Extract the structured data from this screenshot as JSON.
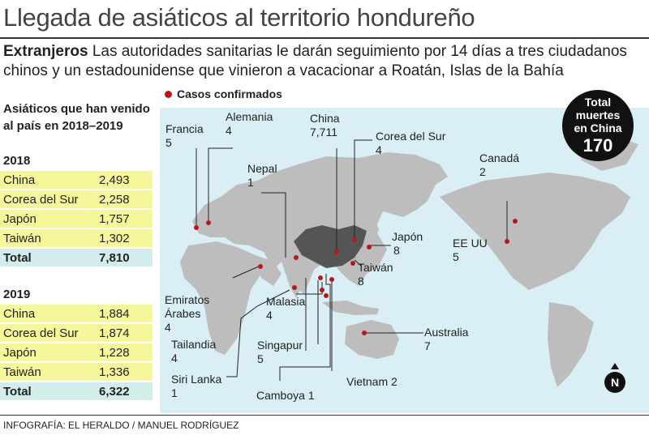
{
  "title": "Llegada de asiáticos al territorio hondureño",
  "subtitle": {
    "lead": "Extranjeros",
    "text": "Las autoridades sanitarias le darán seguimiento por 14 días a tres ciudadanos chinos y un estadounidense que vinieron a vacacionar a Roatán, Islas de la Bahía"
  },
  "side": {
    "heading": "Asiáticos que han venido al país en 2018–2019",
    "tables": [
      {
        "year": "2018",
        "rows": [
          {
            "name": "China",
            "value": "2,493"
          },
          {
            "name": "Corea del Sur",
            "value": "2,258"
          },
          {
            "name": "Japón",
            "value": "1,757"
          },
          {
            "name": "Taiwán",
            "value": "1,302"
          }
        ],
        "total_label": "Total",
        "total_value": "7,810"
      },
      {
        "year": "2019",
        "rows": [
          {
            "name": "China",
            "value": "1,884"
          },
          {
            "name": "Corea del Sur",
            "value": "1,874"
          },
          {
            "name": "Japón",
            "value": "1,228"
          },
          {
            "name": "Taiwán",
            "value": "1,336"
          }
        ],
        "total_label": "Total",
        "total_value": "6,322"
      }
    ]
  },
  "map": {
    "legend": "Casos confirmados",
    "marker_color": "#b31b1b",
    "highlight_color": "#555555",
    "land_color": "#bdbdbd",
    "water_color": "#d9eef5",
    "countries": [
      {
        "name": "Francia",
        "value": "5"
      },
      {
        "name": "Alemania",
        "value": "4"
      },
      {
        "name": "Nepal",
        "value": "1"
      },
      {
        "name": "China",
        "value": "7,711"
      },
      {
        "name": "Corea del Sur",
        "value": "4"
      },
      {
        "name": "Canadá",
        "value": "2"
      },
      {
        "name": "Japón",
        "value": "8"
      },
      {
        "name": "EE UU",
        "value": "5"
      },
      {
        "name": "Taiwán",
        "value": "8"
      },
      {
        "name": "Emiratos Árabes",
        "value": "4"
      },
      {
        "name": "Malasia",
        "value": "4"
      },
      {
        "name": "Tailandia",
        "value": "4"
      },
      {
        "name": "Singapur",
        "value": "5"
      },
      {
        "name": "Australia",
        "value": "7"
      },
      {
        "name": "Siri Lanka",
        "value": "1"
      },
      {
        "name": "Vietnam",
        "value": "2"
      },
      {
        "name": "Camboya",
        "value": "1"
      }
    ],
    "badge": {
      "line1": "Total",
      "line2": "muertes",
      "line3": "en China",
      "value": "170"
    },
    "north": "N"
  },
  "credit": "INFOGRAFÍA: EL HERALDO / MANUEL RODRÍGUEZ"
}
